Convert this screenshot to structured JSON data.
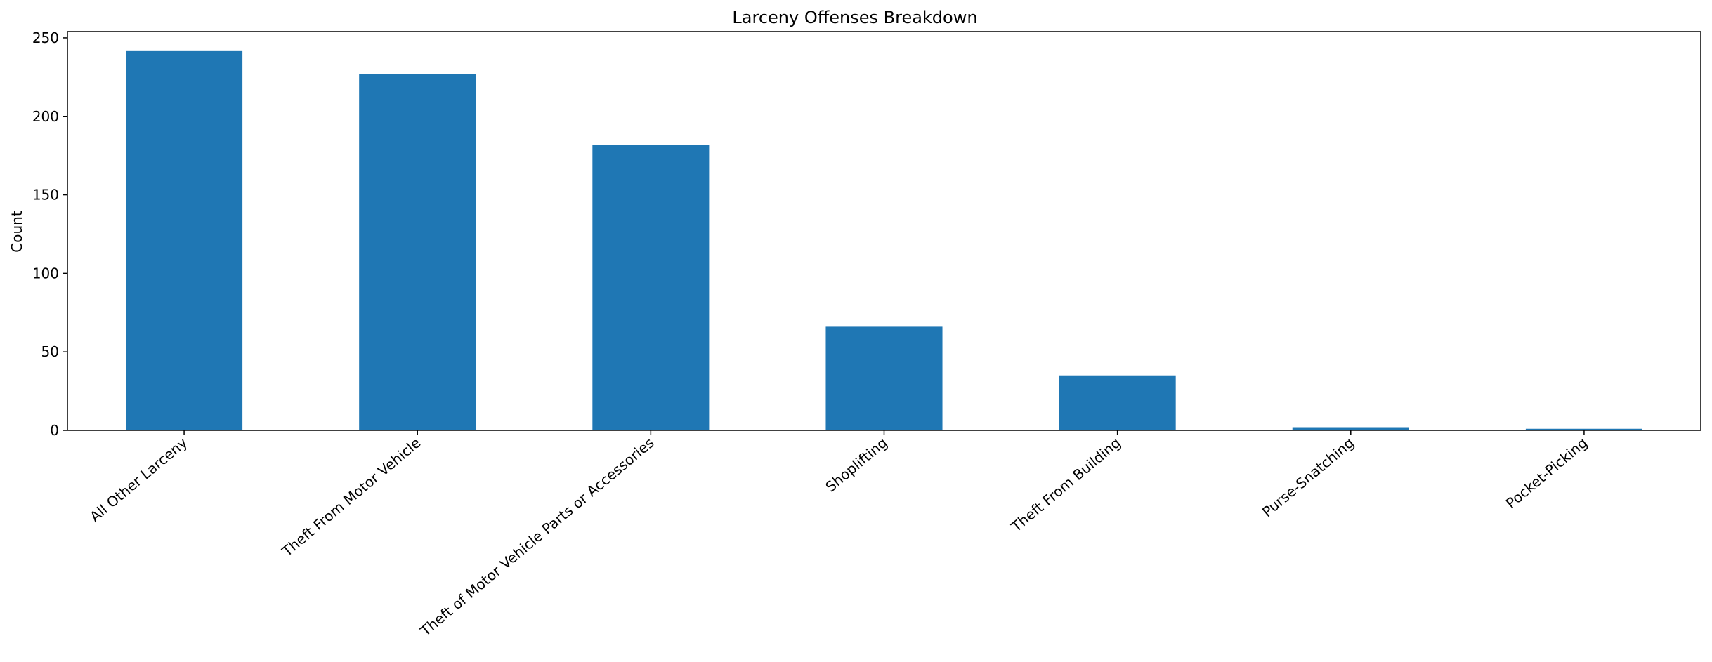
{
  "chart_data": {
    "type": "bar",
    "title": "Larceny Offenses Breakdown",
    "xlabel": "",
    "ylabel": "Count",
    "categories": [
      "All Other Larceny",
      "Theft From Motor Vehicle",
      "Theft of Motor Vehicle Parts or Accessories",
      "Shoplifting",
      "Theft From Building",
      "Purse-Snatching",
      "Pocket-Picking"
    ],
    "values": [
      242,
      227,
      182,
      66,
      35,
      2,
      1
    ],
    "ylim": [
      0,
      254
    ],
    "yticks": [
      0,
      50,
      100,
      150,
      200,
      250
    ],
    "bar_color": "#1f77b4",
    "grid": false,
    "legend": "none"
  }
}
